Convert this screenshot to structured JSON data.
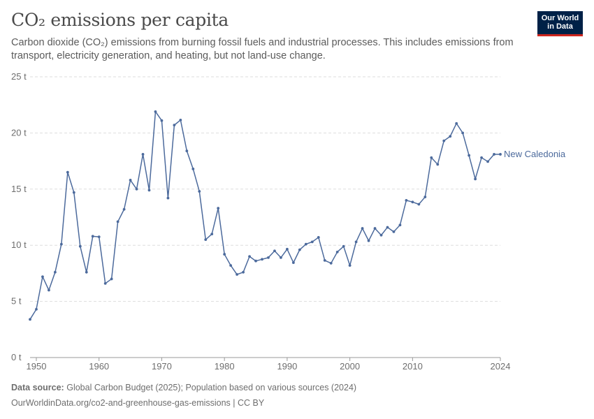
{
  "header": {
    "title": "CO₂ emissions per capita",
    "subtitle": "Carbon dioxide (CO₂) emissions from burning fossil fuels and industrial processes. This includes emissions from transport, electricity generation, and heating, but not land-use change."
  },
  "logo": {
    "line1": "Our World",
    "line2": "in Data",
    "bg_color": "#002147",
    "accent_color": "#ce261e"
  },
  "footer": {
    "source_label": "Data source:",
    "source_text": "Global Carbon Budget (2025); Population based on various sources (2024)",
    "url": "OurWorldinData.org/co2-and-greenhouse-gas-emissions | CC BY"
  },
  "chart_data": {
    "type": "line",
    "title": "CO₂ emissions per capita",
    "xlim": [
      1949,
      2024
    ],
    "ylim": [
      0,
      25
    ],
    "x_ticks": [
      1950,
      1960,
      1970,
      1980,
      1990,
      2000,
      2010,
      2024
    ],
    "y_ticks": [
      0,
      5,
      10,
      15,
      20,
      25
    ],
    "y_tick_labels": [
      "0 t",
      "5 t",
      "10 t",
      "15 t",
      "20 t",
      "25 t"
    ],
    "grid": "horizontal dashed",
    "series": [
      {
        "name": "New Caledonia",
        "color": "#4c6a9c",
        "x": [
          1949,
          1950,
          1951,
          1952,
          1953,
          1954,
          1955,
          1956,
          1957,
          1958,
          1959,
          1960,
          1961,
          1962,
          1963,
          1964,
          1965,
          1966,
          1967,
          1968,
          1969,
          1970,
          1971,
          1972,
          1973,
          1974,
          1975,
          1976,
          1977,
          1978,
          1979,
          1980,
          1981,
          1982,
          1983,
          1984,
          1985,
          1986,
          1987,
          1988,
          1989,
          1990,
          1991,
          1992,
          1993,
          1994,
          1995,
          1996,
          1997,
          1998,
          1999,
          2000,
          2001,
          2002,
          2003,
          2004,
          2005,
          2006,
          2007,
          2008,
          2009,
          2010,
          2011,
          2012,
          2013,
          2014,
          2015,
          2016,
          2017,
          2018,
          2019,
          2020,
          2021,
          2022,
          2023,
          2024
        ],
        "values": [
          3.4,
          4.3,
          7.2,
          6.0,
          7.6,
          10.1,
          16.5,
          14.7,
          9.9,
          7.6,
          10.8,
          10.75,
          6.6,
          7.0,
          12.1,
          13.2,
          15.8,
          15.0,
          18.1,
          14.9,
          21.9,
          21.1,
          14.2,
          20.7,
          21.15,
          18.4,
          16.8,
          14.8,
          10.5,
          11.0,
          13.3,
          9.2,
          8.2,
          7.4,
          7.6,
          9.0,
          8.6,
          8.75,
          8.9,
          9.5,
          8.9,
          9.65,
          8.45,
          9.6,
          10.1,
          10.3,
          10.7,
          8.65,
          8.4,
          9.4,
          9.9,
          8.2,
          10.3,
          11.5,
          10.4,
          11.5,
          10.9,
          11.6,
          11.2,
          11.8,
          14.0,
          13.85,
          13.65,
          14.3,
          17.8,
          17.2,
          19.3,
          19.7,
          20.85,
          20.0,
          18.0,
          15.9,
          17.8,
          17.45,
          18.1,
          18.1
        ]
      }
    ]
  }
}
